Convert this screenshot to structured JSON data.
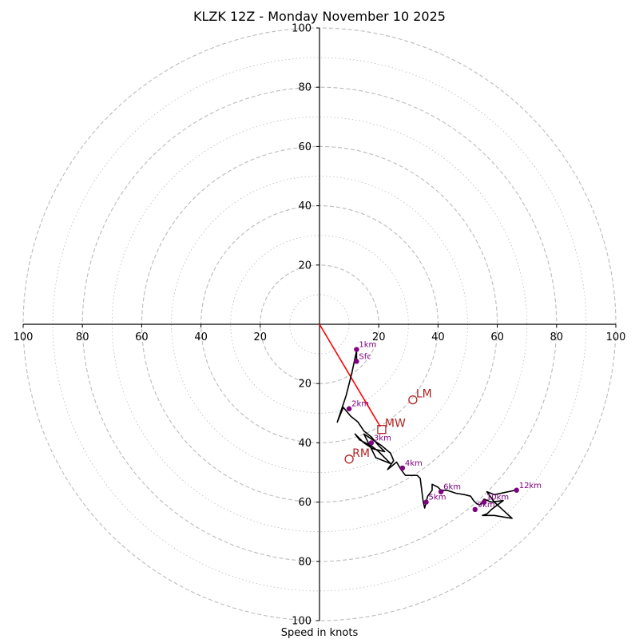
{
  "chart_data": {
    "type": "hodograph",
    "title": "KLZK 12Z - Monday November 10 2025",
    "xlabel": "Speed in knots",
    "units": "knots",
    "range": [
      -100,
      100
    ],
    "ring_major": [
      20,
      40,
      60,
      80,
      100
    ],
    "ring_minor": [
      10,
      30,
      50,
      70,
      90
    ],
    "x_ticks": [
      {
        "v": -100,
        "label": "100"
      },
      {
        "v": -80,
        "label": "80"
      },
      {
        "v": -60,
        "label": "60"
      },
      {
        "v": -40,
        "label": "40"
      },
      {
        "v": -20,
        "label": "20"
      },
      {
        "v": 20,
        "label": "20"
      },
      {
        "v": 40,
        "label": "40"
      },
      {
        "v": 60,
        "label": "60"
      },
      {
        "v": 80,
        "label": "80"
      },
      {
        "v": 100,
        "label": "100"
      }
    ],
    "y_ticks": [
      {
        "v": 100,
        "label": "100"
      },
      {
        "v": 80,
        "label": "80"
      },
      {
        "v": 60,
        "label": "60"
      },
      {
        "v": 40,
        "label": "40"
      },
      {
        "v": 20,
        "label": "20"
      },
      {
        "v": -20,
        "label": "20"
      },
      {
        "v": -40,
        "label": "40"
      },
      {
        "v": -60,
        "label": "60"
      },
      {
        "v": -80,
        "label": "80"
      },
      {
        "v": -100,
        "label": "100"
      }
    ],
    "hodograph_trace": [
      [
        12.5,
        -12.5
      ],
      [
        12.5,
        -9
      ],
      [
        11,
        -16
      ],
      [
        10.5,
        -18
      ],
      [
        9,
        -24
      ],
      [
        8,
        -27
      ],
      [
        6,
        -33
      ],
      [
        8,
        -28
      ],
      [
        10.5,
        -31
      ],
      [
        13,
        -33
      ],
      [
        15,
        -36
      ],
      [
        17.5,
        -38
      ],
      [
        20,
        -41
      ],
      [
        22,
        -43
      ],
      [
        18,
        -42
      ],
      [
        15,
        -40
      ],
      [
        12,
        -37
      ],
      [
        13.5,
        -39
      ],
      [
        17.5,
        -41
      ],
      [
        20,
        -43
      ],
      [
        24,
        -47
      ],
      [
        19,
        -45
      ],
      [
        15,
        -37
      ],
      [
        18,
        -39
      ],
      [
        21,
        -41
      ],
      [
        24,
        -43.5
      ],
      [
        25,
        -46
      ],
      [
        23,
        -49
      ],
      [
        26,
        -46.5
      ],
      [
        27.5,
        -49
      ],
      [
        29,
        -51
      ],
      [
        31,
        -51
      ],
      [
        33,
        -51
      ],
      [
        34,
        -52
      ],
      [
        34.5,
        -56
      ],
      [
        35,
        -60
      ],
      [
        35.5,
        -62
      ],
      [
        36.5,
        -58
      ],
      [
        38,
        -56
      ],
      [
        38,
        -54
      ],
      [
        40,
        -55
      ],
      [
        41,
        -56
      ],
      [
        43,
        -56
      ],
      [
        46,
        -57
      ],
      [
        49,
        -57.5
      ],
      [
        51,
        -58
      ],
      [
        52,
        -59.5
      ],
      [
        53,
        -60.5
      ],
      [
        54,
        -61
      ],
      [
        55,
        -60
      ],
      [
        55.5,
        -59
      ],
      [
        58,
        -60
      ],
      [
        62,
        -59.5
      ],
      [
        60,
        -61
      ],
      [
        58,
        -62.5
      ],
      [
        56.5,
        -64
      ],
      [
        55,
        -64.5
      ],
      [
        59,
        -64.5
      ],
      [
        65,
        -65.5
      ],
      [
        59,
        -60
      ],
      [
        56.5,
        -56.5
      ],
      [
        59,
        -57.5
      ],
      [
        66,
        -56
      ]
    ],
    "height_labels": [
      {
        "label": "Sfc",
        "u": 12.5,
        "v": -12.5
      },
      {
        "label": "1km",
        "u": 12.5,
        "v": -8.5
      },
      {
        "label": "2km",
        "u": 10,
        "v": -28.5
      },
      {
        "label": "3km",
        "u": 17.5,
        "v": -40
      },
      {
        "label": "4km",
        "u": 28,
        "v": -48.5
      },
      {
        "label": "5km",
        "u": 36,
        "v": -60
      },
      {
        "label": "6km",
        "u": 41,
        "v": -56.5
      },
      {
        "label": "9km",
        "u": 52.5,
        "v": -62.5
      },
      {
        "label": "10km",
        "u": 55.5,
        "v": -60
      },
      {
        "label": "12km",
        "u": 66.5,
        "v": -56
      }
    ],
    "storm_motion": {
      "MW": {
        "label": "MW",
        "u": 21,
        "v": -35.5
      },
      "RM": {
        "label": "RM",
        "u": 10,
        "v": -45.5
      },
      "LM": {
        "label": "LM",
        "u": 31.5,
        "v": -25.5
      }
    },
    "mean_wind_vector": {
      "u0": 0,
      "v0": 0,
      "u1": 20.5,
      "v1": -34.5
    }
  },
  "colors": {
    "trace": "#000000",
    "height_points": "#800080",
    "storm_markers": "#b22222",
    "mean_wind_vector": "#ff0000",
    "grid": "#bbbbbb",
    "axes": "#000000"
  }
}
